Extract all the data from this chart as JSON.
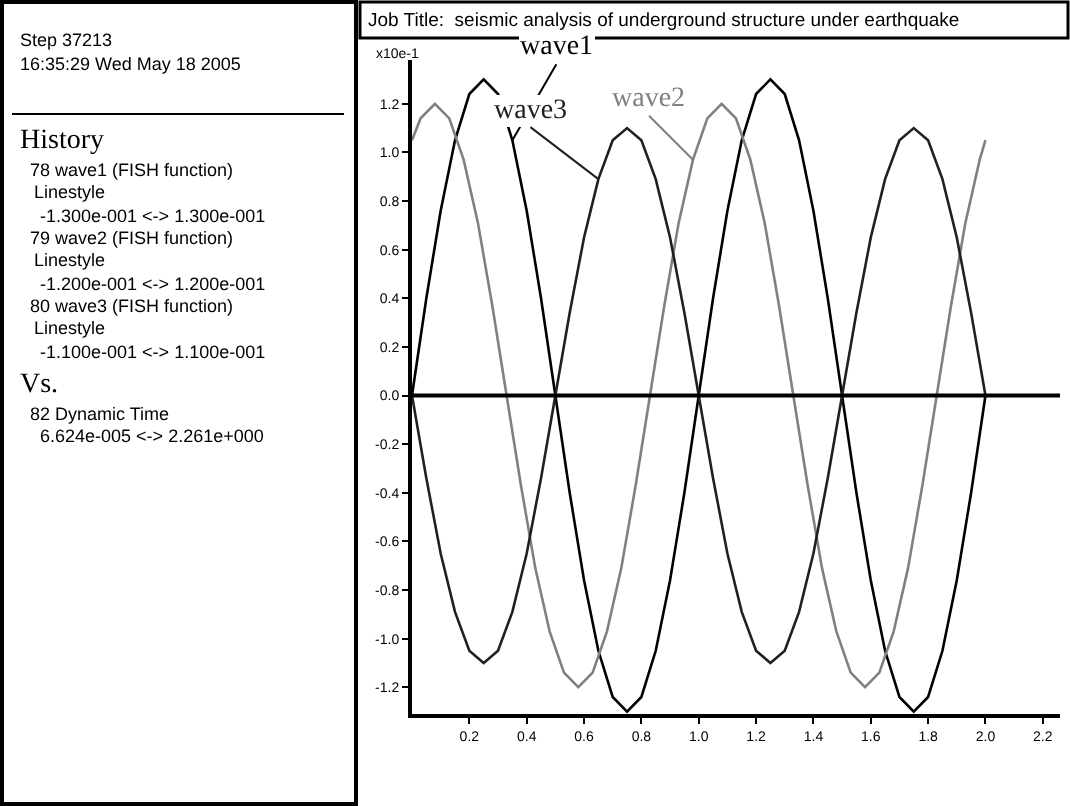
{
  "chart_data": {
    "type": "line",
    "title": "Job Title:  seismic analysis of underground structure under earthquake",
    "ylabel": "x10e-1",
    "annotations": [
      "Step 37213",
      "16:35:29 Wed May 18 2005",
      "History",
      "78 wave1 (FISH function)",
      "Linestyle",
      "-1.300e-001 <-> 1.300e-001",
      "79 wave2 (FISH function)",
      "Linestyle",
      "-1.200e-001 <-> 1.200e-001",
      "80 wave3 (FISH function)",
      "Linestyle",
      "-1.100e-001 <-> 1.100e-001",
      "Vs.",
      "82 Dynamic Time",
      "6.624e-005 <-> 2.261e+000"
    ],
    "x": [
      0,
      0.05,
      0.1,
      0.15,
      0.2,
      0.25,
      0.3,
      0.35,
      0.4,
      0.45,
      0.5,
      0.55,
      0.6,
      0.65,
      0.7,
      0.75,
      0.8,
      0.85,
      0.9,
      0.95,
      1.0,
      1.05,
      1.1,
      1.15,
      1.2,
      1.25,
      1.3,
      1.35,
      1.4,
      1.45,
      1.5,
      1.55,
      1.6,
      1.65,
      1.7,
      1.75,
      1.8,
      1.85,
      1.9,
      1.95,
      2.0
    ],
    "series": [
      {
        "name": "wave1",
        "color": "#000000",
        "values": [
          0,
          0.4,
          0.76,
          1.05,
          1.24,
          1.3,
          1.24,
          1.05,
          0.76,
          0.4,
          0,
          -0.4,
          -0.76,
          -1.05,
          -1.24,
          -1.3,
          -1.24,
          -1.05,
          -0.76,
          -0.4,
          0,
          0.4,
          0.76,
          1.05,
          1.24,
          1.3,
          1.24,
          1.05,
          0.76,
          0.4,
          0,
          -0.4,
          -0.76,
          -1.05,
          -1.24,
          -1.3,
          -1.24,
          -1.05,
          -0.76,
          -0.4,
          0
        ]
      },
      {
        "name": "wave2",
        "color": "#808080",
        "x": [
          0,
          0.03,
          0.08,
          0.13,
          0.18,
          0.23,
          0.28,
          0.33,
          0.38,
          0.43,
          0.48,
          0.53,
          0.58,
          0.63,
          0.68,
          0.73,
          0.78,
          0.83,
          0.88,
          0.93,
          0.98,
          1.03,
          1.08,
          1.13,
          1.18,
          1.23,
          1.28,
          1.33,
          1.38,
          1.43,
          1.48,
          1.53,
          1.58,
          1.63,
          1.68,
          1.73,
          1.78,
          1.83,
          1.88,
          1.93,
          1.98,
          2.0
        ],
        "values": [
          1.05,
          1.14,
          1.2,
          1.14,
          0.97,
          0.71,
          0.37,
          0,
          -0.37,
          -0.71,
          -0.97,
          -1.14,
          -1.2,
          -1.14,
          -0.97,
          -0.71,
          -0.37,
          0,
          0.37,
          0.71,
          0.97,
          1.14,
          1.2,
          1.14,
          0.97,
          0.71,
          0.37,
          0,
          -0.37,
          -0.71,
          -0.97,
          -1.14,
          -1.2,
          -1.14,
          -0.97,
          -0.71,
          -0.37,
          0,
          0.37,
          0.71,
          0.97,
          1.05
        ]
      },
      {
        "name": "wave3",
        "color": "#202020",
        "values": [
          0,
          -0.34,
          -0.65,
          -0.89,
          -1.05,
          -1.1,
          -1.05,
          -0.89,
          -0.65,
          -0.34,
          0,
          0.34,
          0.65,
          0.89,
          1.05,
          1.1,
          1.05,
          0.89,
          0.65,
          0.34,
          0,
          -0.34,
          -0.65,
          -0.89,
          -1.05,
          -1.1,
          -1.05,
          -0.89,
          -0.65,
          -0.34,
          0,
          0.34,
          0.65,
          0.89,
          1.05,
          1.1,
          1.05,
          0.89,
          0.65,
          0.34,
          0
        ]
      }
    ],
    "xlim": [
      0,
      2.26
    ],
    "xticks": [
      {
        "value": 0.2,
        "label": "0.2"
      },
      {
        "value": 0.4,
        "label": "0.4"
      },
      {
        "value": 0.6,
        "label": "0.6"
      },
      {
        "value": 0.8,
        "label": "0.8"
      },
      {
        "value": 1.0,
        "label": "1.0"
      },
      {
        "value": 1.2,
        "label": "1.2"
      },
      {
        "value": 1.4,
        "label": "1.4"
      },
      {
        "value": 1.6,
        "label": "1.6"
      },
      {
        "value": 1.8,
        "label": "1.8"
      },
      {
        "value": 2.0,
        "label": "2.0"
      },
      {
        "value": 2.2,
        "label": "2.2"
      }
    ],
    "ylim": [
      -1.31,
      1.38
    ],
    "yticks": [
      {
        "value": -1.2,
        "label": "-1.2"
      },
      {
        "value": -1.0,
        "label": "-1.0"
      },
      {
        "value": -0.8,
        "label": "-0.8"
      },
      {
        "value": -0.6,
        "label": "-0.6"
      },
      {
        "value": -0.4,
        "label": "-0.4"
      },
      {
        "value": -0.2,
        "label": "-0.2"
      },
      {
        "value": 0,
        "label": "0.0"
      },
      {
        "value": 0.2,
        "label": "0.2"
      },
      {
        "value": 0.4,
        "label": "0.4"
      },
      {
        "value": 0.6,
        "label": "0.6"
      },
      {
        "value": 0.8,
        "label": "0.8"
      },
      {
        "value": 1.0,
        "label": "1.0"
      },
      {
        "value": 1.2,
        "label": "1.2"
      }
    ],
    "ref_lines": [
      {
        "axis": "y",
        "value": 0,
        "color": "#000000",
        "line_style": "solid"
      }
    ],
    "grid": false,
    "legend": false,
    "marker": "none",
    "line_style": "solid"
  }
}
